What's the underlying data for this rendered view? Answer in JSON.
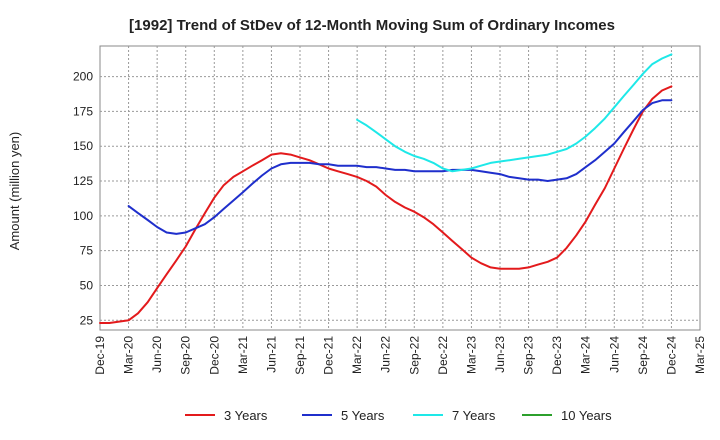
{
  "chart_data": {
    "type": "line",
    "title": "[1992]  Trend of StDev of 12-Month Moving Sum of Ordinary Incomes",
    "xlabel": "",
    "ylabel": "Amount (million yen)",
    "ylim": [
      18,
      222
    ],
    "yticks": [
      25,
      50,
      75,
      100,
      125,
      150,
      175,
      200
    ],
    "grid": true,
    "legend_position": "bottom",
    "categories": [
      "Dec-19",
      "Mar-20",
      "Jun-20",
      "Sep-20",
      "Dec-20",
      "Mar-21",
      "Jun-21",
      "Sep-21",
      "Dec-21",
      "Mar-22",
      "Jun-22",
      "Sep-22",
      "Dec-22",
      "Mar-23",
      "Jun-23",
      "Sep-23",
      "Dec-23",
      "Mar-24",
      "Jun-24",
      "Sep-24",
      "Dec-24",
      "Mar-25"
    ],
    "series": [
      {
        "name": "3 Years",
        "color": "#e31a1c",
        "x": [
          0,
          0.33,
          0.67,
          1,
          1.33,
          1.67,
          2,
          2.33,
          2.67,
          3,
          3.33,
          3.67,
          4,
          4.33,
          4.67,
          5,
          5.33,
          5.67,
          6,
          6.33,
          6.67,
          7,
          7.33,
          7.67,
          8,
          8.33,
          8.67,
          9,
          9.33,
          9.67,
          10,
          10.33,
          10.67,
          11,
          11.33,
          11.67,
          12,
          12.33,
          12.67,
          13,
          13.33,
          13.67,
          14,
          14.33,
          14.67,
          15,
          15.33,
          15.67,
          16,
          16.33,
          16.67,
          17,
          17.33,
          17.67,
          18,
          18.33,
          18.67,
          19,
          19.33,
          19.67,
          20
        ],
        "values": [
          23,
          23,
          24,
          25,
          30,
          38,
          48,
          58,
          68,
          78,
          90,
          102,
          113,
          122,
          128,
          132,
          136,
          140,
          144,
          145,
          144,
          142,
          140,
          137,
          134,
          132,
          130,
          128,
          125,
          121,
          115,
          110,
          106,
          103,
          99,
          94,
          88,
          82,
          76,
          70,
          66,
          63,
          62,
          62,
          62,
          63,
          65,
          67,
          70,
          77,
          86,
          96,
          108,
          120,
          134,
          148,
          162,
          175,
          184,
          190,
          193
        ]
      },
      {
        "name": "5 Years",
        "color": "#1f2fcc",
        "x": [
          1,
          1.33,
          1.67,
          2,
          2.33,
          2.67,
          3,
          3.33,
          3.67,
          4,
          4.33,
          4.67,
          5,
          5.33,
          5.67,
          6,
          6.33,
          6.67,
          7,
          7.33,
          7.67,
          8,
          8.33,
          8.67,
          9,
          9.33,
          9.67,
          10,
          10.33,
          10.67,
          11,
          11.33,
          11.67,
          12,
          12.33,
          12.67,
          13,
          13.33,
          13.67,
          14,
          14.33,
          14.67,
          15,
          15.33,
          15.67,
          16,
          16.33,
          16.67,
          17,
          17.33,
          17.67,
          18,
          18.33,
          18.67,
          19,
          19.33,
          19.67,
          20
        ],
        "values": [
          107,
          102,
          97,
          92,
          88,
          87,
          88,
          91,
          94,
          99,
          105,
          111,
          117,
          123,
          129,
          134,
          137,
          138,
          138,
          138,
          137,
          137,
          136,
          136,
          136,
          135,
          135,
          134,
          133,
          133,
          132,
          132,
          132,
          132,
          133,
          133,
          133,
          132,
          131,
          130,
          128,
          127,
          126,
          126,
          125,
          126,
          127,
          130,
          135,
          140,
          146,
          152,
          160,
          168,
          176,
          181,
          183,
          183
        ]
      },
      {
        "name": "7 Years",
        "color": "#1ee8e8",
        "x": [
          9,
          9.33,
          9.67,
          10,
          10.33,
          10.67,
          11,
          11.33,
          11.67,
          12,
          12.33,
          12.67,
          13,
          13.33,
          13.67,
          14,
          14.33,
          14.67,
          15,
          15.33,
          15.67,
          16,
          16.33,
          16.67,
          17,
          17.33,
          17.67,
          18,
          18.33,
          18.67,
          19,
          19.33,
          19.67,
          20
        ],
        "values": [
          169,
          165,
          160,
          155,
          150,
          146,
          143,
          141,
          138,
          134,
          132,
          133,
          134,
          136,
          138,
          139,
          140,
          141,
          142,
          143,
          144,
          146,
          148,
          152,
          157,
          163,
          170,
          178,
          186,
          194,
          202,
          209,
          213,
          216
        ]
      },
      {
        "name": "10 Years",
        "color": "#2ca02c",
        "x": [],
        "values": []
      }
    ]
  }
}
